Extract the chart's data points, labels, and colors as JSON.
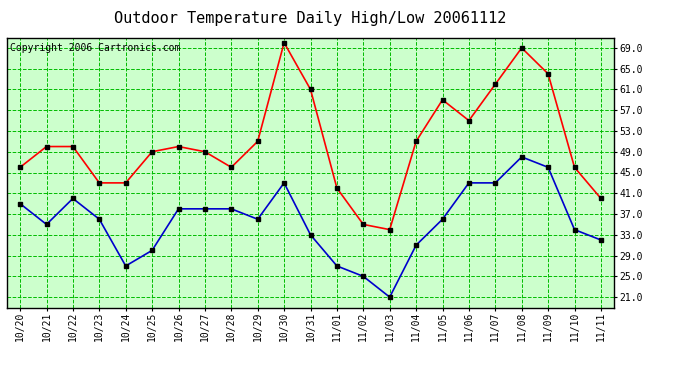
{
  "title": "Outdoor Temperature Daily High/Low 20061112",
  "copyright": "Copyright 2006 Cartronics.com",
  "labels": [
    "10/20",
    "10/21",
    "10/22",
    "10/23",
    "10/24",
    "10/25",
    "10/26",
    "10/27",
    "10/28",
    "10/29",
    "10/30",
    "10/31",
    "11/01",
    "11/02",
    "11/03",
    "11/04",
    "11/05",
    "11/06",
    "11/07",
    "11/08",
    "11/09",
    "11/10",
    "11/11"
  ],
  "high_temps": [
    46,
    50,
    50,
    43,
    43,
    49,
    50,
    49,
    46,
    51,
    70,
    61,
    42,
    35,
    34,
    51,
    59,
    55,
    62,
    69,
    64,
    46,
    40
  ],
  "low_temps": [
    39,
    35,
    40,
    36,
    27,
    30,
    38,
    38,
    38,
    36,
    43,
    33,
    27,
    25,
    21,
    31,
    36,
    43,
    43,
    48,
    46,
    34,
    32
  ],
  "high_color": "#ff0000",
  "low_color": "#0000cc",
  "grid_color": "#00bb00",
  "bg_color": "#ffffff",
  "plot_bg_color": "#ccffcc",
  "border_color": "#000000",
  "title_color": "#000000",
  "copyright_color": "#000000",
  "ylim_min": 19.0,
  "ylim_max": 71.0,
  "yticks": [
    21.0,
    25.0,
    29.0,
    33.0,
    37.0,
    41.0,
    45.0,
    49.0,
    53.0,
    57.0,
    61.0,
    65.0,
    69.0
  ],
  "marker": "s",
  "marker_size": 3,
  "marker_color": "#000000",
  "line_width": 1.2,
  "title_fontsize": 11,
  "copyright_fontsize": 7,
  "tick_fontsize": 7,
  "ytick_fontsize": 7
}
